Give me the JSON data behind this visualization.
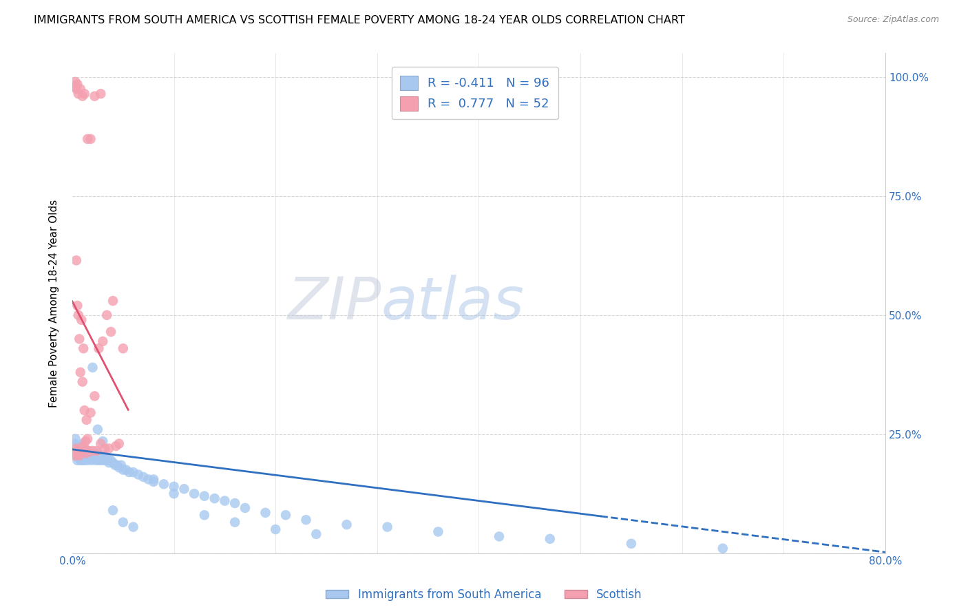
{
  "title": "IMMIGRANTS FROM SOUTH AMERICA VS SCOTTISH FEMALE POVERTY AMONG 18-24 YEAR OLDS CORRELATION CHART",
  "source": "Source: ZipAtlas.com",
  "ylabel": "Female Poverty Among 18-24 Year Olds",
  "xlim": [
    0.0,
    0.8
  ],
  "ylim": [
    0.0,
    1.05
  ],
  "xticks": [
    0.0,
    0.1,
    0.2,
    0.3,
    0.4,
    0.5,
    0.6,
    0.7,
    0.8
  ],
  "xticklabels": [
    "0.0%",
    "",
    "",
    "",
    "",
    "",
    "",
    "",
    "80.0%"
  ],
  "yticks_right": [
    0.0,
    0.25,
    0.5,
    0.75,
    1.0
  ],
  "yticklabels_right": [
    "",
    "25.0%",
    "50.0%",
    "75.0%",
    "100.0%"
  ],
  "legend_labels": [
    "Immigrants from South America",
    "Scottish"
  ],
  "blue_color": "#a8c8f0",
  "pink_color": "#f4a0b0",
  "blue_line_color": "#3070c0",
  "pink_line_color": "#e05070",
  "R_blue": -0.411,
  "N_blue": 96,
  "R_pink": 0.777,
  "N_pink": 52,
  "watermark_zip": "ZIP",
  "watermark_atlas": "atlas",
  "blue_scatter_x": [
    0.001,
    0.002,
    0.002,
    0.003,
    0.003,
    0.004,
    0.004,
    0.005,
    0.005,
    0.006,
    0.006,
    0.007,
    0.007,
    0.008,
    0.008,
    0.009,
    0.009,
    0.01,
    0.01,
    0.011,
    0.011,
    0.012,
    0.012,
    0.013,
    0.014,
    0.014,
    0.015,
    0.015,
    0.016,
    0.017,
    0.018,
    0.019,
    0.02,
    0.021,
    0.022,
    0.023,
    0.024,
    0.025,
    0.026,
    0.027,
    0.028,
    0.03,
    0.031,
    0.033,
    0.034,
    0.035,
    0.036,
    0.038,
    0.04,
    0.042,
    0.044,
    0.046,
    0.048,
    0.05,
    0.053,
    0.056,
    0.06,
    0.065,
    0.07,
    0.075,
    0.08,
    0.09,
    0.1,
    0.11,
    0.12,
    0.13,
    0.14,
    0.15,
    0.16,
    0.17,
    0.19,
    0.21,
    0.23,
    0.27,
    0.31,
    0.36,
    0.42,
    0.47,
    0.55,
    0.64,
    0.003,
    0.006,
    0.01,
    0.015,
    0.02,
    0.025,
    0.03,
    0.04,
    0.05,
    0.06,
    0.08,
    0.1,
    0.13,
    0.16,
    0.2,
    0.24
  ],
  "blue_scatter_y": [
    0.22,
    0.215,
    0.23,
    0.21,
    0.225,
    0.205,
    0.22,
    0.215,
    0.195,
    0.22,
    0.2,
    0.21,
    0.225,
    0.205,
    0.195,
    0.215,
    0.2,
    0.21,
    0.195,
    0.215,
    0.2,
    0.21,
    0.195,
    0.205,
    0.215,
    0.2,
    0.21,
    0.195,
    0.21,
    0.2,
    0.205,
    0.195,
    0.21,
    0.2,
    0.205,
    0.195,
    0.2,
    0.21,
    0.195,
    0.2,
    0.195,
    0.205,
    0.195,
    0.2,
    0.195,
    0.2,
    0.19,
    0.195,
    0.19,
    0.185,
    0.185,
    0.18,
    0.185,
    0.175,
    0.175,
    0.17,
    0.17,
    0.165,
    0.16,
    0.155,
    0.15,
    0.145,
    0.14,
    0.135,
    0.125,
    0.12,
    0.115,
    0.11,
    0.105,
    0.095,
    0.085,
    0.08,
    0.07,
    0.06,
    0.055,
    0.045,
    0.035,
    0.03,
    0.02,
    0.01,
    0.24,
    0.22,
    0.23,
    0.215,
    0.39,
    0.26,
    0.235,
    0.09,
    0.065,
    0.055,
    0.155,
    0.125,
    0.08,
    0.065,
    0.05,
    0.04
  ],
  "pink_scatter_x": [
    0.002,
    0.003,
    0.004,
    0.005,
    0.006,
    0.007,
    0.008,
    0.009,
    0.01,
    0.011,
    0.012,
    0.013,
    0.014,
    0.015,
    0.016,
    0.018,
    0.02,
    0.022,
    0.024,
    0.026,
    0.028,
    0.03,
    0.032,
    0.034,
    0.036,
    0.038,
    0.04,
    0.043,
    0.046,
    0.05,
    0.004,
    0.005,
    0.006,
    0.007,
    0.008,
    0.009,
    0.01,
    0.011,
    0.012,
    0.014,
    0.002,
    0.003,
    0.004,
    0.005,
    0.006,
    0.008,
    0.01,
    0.012,
    0.015,
    0.018,
    0.022,
    0.028
  ],
  "pink_scatter_y": [
    0.215,
    0.205,
    0.22,
    0.21,
    0.215,
    0.205,
    0.22,
    0.21,
    0.215,
    0.225,
    0.22,
    0.235,
    0.21,
    0.24,
    0.215,
    0.295,
    0.215,
    0.33,
    0.215,
    0.43,
    0.23,
    0.445,
    0.22,
    0.5,
    0.22,
    0.465,
    0.53,
    0.225,
    0.23,
    0.43,
    0.615,
    0.52,
    0.5,
    0.45,
    0.38,
    0.49,
    0.36,
    0.43,
    0.3,
    0.28,
    0.98,
    0.99,
    0.975,
    0.985,
    0.965,
    0.975,
    0.96,
    0.965,
    0.87,
    0.87,
    0.96,
    0.965
  ],
  "blue_line_x": [
    0.0,
    0.55,
    0.8
  ],
  "blue_line_solid_end": 0.52,
  "pink_line_x_start": 0.0,
  "pink_line_x_end": 0.055
}
